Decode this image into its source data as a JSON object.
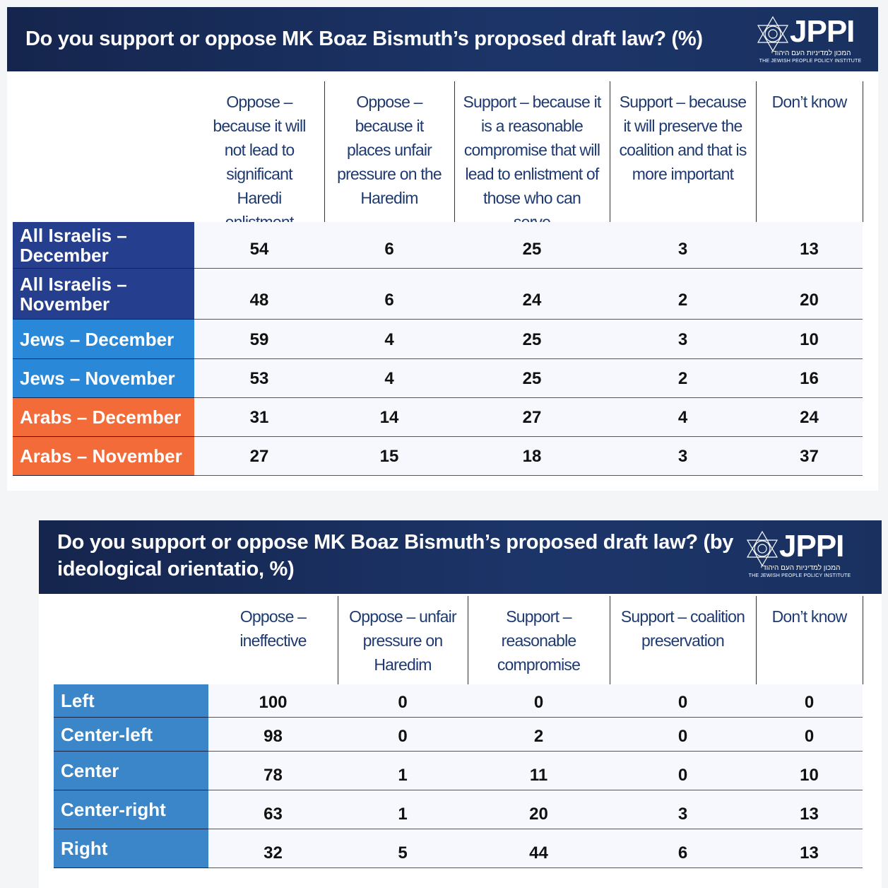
{
  "tables": [
    {
      "title": "Do you support or oppose MK Boaz Bismuth’s proposed draft law? (%)",
      "logo": {
        "name": "JPPI",
        "hebrew": "המכון למדיניות העם היהודי",
        "english": "THE JEWISH PEOPLE POLICY INSTITUTE"
      },
      "columns": [
        "Oppose – because it will not lead to significant Haredi enlistment",
        "Oppose – because it places unfair pressure on the Haredim",
        "Support – because it is a reasonable compromise that will lead to enlistment of those who can serve",
        "Support – because it will preserve the coalition and that is more important",
        "Don’t know"
      ],
      "rows": [
        {
          "label": "All Israelis – December",
          "color": "#253f8e",
          "values": [
            "54",
            "6",
            "25",
            "3",
            "13"
          ]
        },
        {
          "label": "All Israelis – November",
          "color": "#253f8e",
          "values": [
            "48",
            "6",
            "24",
            "2",
            "20"
          ]
        },
        {
          "label": "Jews – December",
          "color": "#2a88d8",
          "values": [
            "59",
            "4",
            "25",
            "3",
            "10"
          ]
        },
        {
          "label": "Jews – November",
          "color": "#2a88d8",
          "values": [
            "53",
            "4",
            "25",
            "2",
            "16"
          ]
        },
        {
          "label": "Arabs – December",
          "color": "#f26b38",
          "values": [
            "31",
            "14",
            "27",
            "4",
            "24"
          ]
        },
        {
          "label": "Arabs – November",
          "color": "#f26b38",
          "values": [
            "27",
            "15",
            "18",
            "3",
            "37"
          ]
        }
      ]
    },
    {
      "title": "Do you support or oppose MK Boaz Bismuth’s proposed draft law? (by ideological orientatio, %)",
      "logo": {
        "name": "JPPI",
        "hebrew": "המכון למדיניות העם היהודי",
        "english": "THE JEWISH PEOPLE POLICY INSTITUTE"
      },
      "columns": [
        "Oppose – ineffective",
        "Oppose – unfair pressure on Haredim",
        "Support – reasonable compromise",
        "Support – coalition preservation",
        "Don’t know"
      ],
      "rows": [
        {
          "label": "Left",
          "color": "#3a86c8",
          "values": [
            "100",
            "0",
            "0",
            "0",
            "0"
          ]
        },
        {
          "label": "Center-left",
          "color": "#3a86c8",
          "values": [
            "98",
            "0",
            "2",
            "0",
            "0"
          ]
        },
        {
          "label": "Center",
          "color": "#3a86c8",
          "values": [
            "78",
            "1",
            "11",
            "0",
            "10"
          ]
        },
        {
          "label": "Center-right",
          "color": "#3a86c8",
          "values": [
            "63",
            "1",
            "20",
            "3",
            "13"
          ]
        },
        {
          "label": "Right",
          "color": "#3a86c8",
          "values": [
            "32",
            "5",
            "44",
            "6",
            "13"
          ]
        }
      ]
    }
  ]
}
